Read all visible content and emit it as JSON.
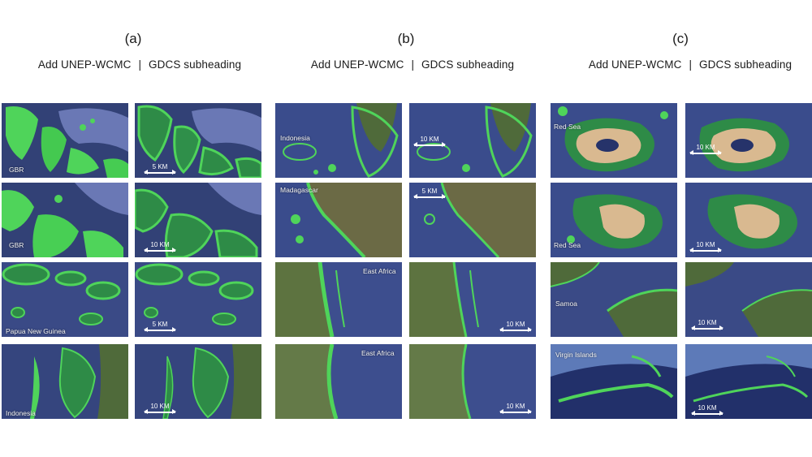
{
  "figure": {
    "columns": [
      {
        "label": "(a)",
        "left_heading": "Add UNEP-WCMC",
        "separator": "|",
        "right_heading": "GDCS subheading",
        "rows": [
          {
            "region": "GBR",
            "scale": "5 KM"
          },
          {
            "region": "GBR",
            "scale": "10 KM"
          },
          {
            "region": "Papua New Guinea",
            "scale": "5 KM"
          },
          {
            "region": "Indonesia",
            "scale": "10 KM"
          }
        ]
      },
      {
        "label": "(b)",
        "left_heading": "Add UNEP-WCMC",
        "separator": "|",
        "right_heading": "GDCS subheading",
        "rows": [
          {
            "region": "Indonesia",
            "scale": "10 KM"
          },
          {
            "region": "Madagascar",
            "scale": "5 KM"
          },
          {
            "region": "East Africa",
            "scale": "10 KM"
          },
          {
            "region": "East Africa",
            "scale": "10 KM"
          }
        ]
      },
      {
        "label": "(c)",
        "left_heading": "Add UNEP-WCMC",
        "separator": "|",
        "right_heading": "GDCS subheading",
        "rows": [
          {
            "region": "Red Sea",
            "scale": "10 KM"
          },
          {
            "region": "Red Sea",
            "scale": "10 KM"
          },
          {
            "region": "Samoa",
            "scale": "10 KM"
          },
          {
            "region": "Virgin Islands",
            "scale": "10 KM"
          }
        ]
      }
    ],
    "colors": {
      "ocean": "#3f4f8e",
      "ocean_dark": "#26336a",
      "reef_green": "#4fd45a",
      "reef_mid": "#2e8b47",
      "land_green": "#4f6a3a",
      "sand": "#d9b990"
    }
  }
}
